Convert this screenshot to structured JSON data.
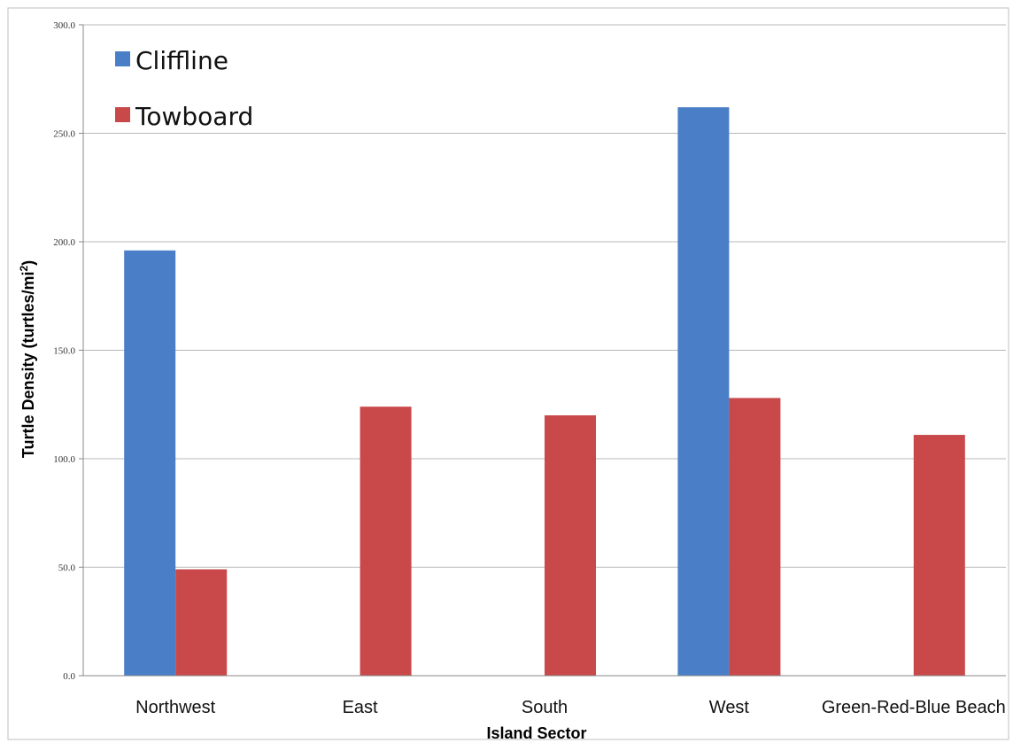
{
  "chart_data": {
    "type": "bar",
    "categories": [
      "Northwest",
      "East",
      "South",
      "West",
      "Green-Red-Blue Beach"
    ],
    "series": [
      {
        "name": "Cliffline",
        "color": "#4a7fc8",
        "values": [
          196,
          null,
          null,
          262,
          null
        ]
      },
      {
        "name": "Towboard",
        "color": "#c9484a",
        "values": [
          49,
          124,
          120,
          128,
          111
        ]
      }
    ],
    "title": "",
    "xlabel": "Island Sector",
    "ylabel_main": "Turtle Density (turtles/mi",
    "ylabel_sup": "2",
    "ylabel_end": ")",
    "ylim": [
      0,
      300
    ],
    "yticks": [
      "0.0",
      "50.0",
      "100.0",
      "150.0",
      "200.0",
      "250.0",
      "300.0"
    ],
    "grid": true,
    "legend": "top-left"
  }
}
